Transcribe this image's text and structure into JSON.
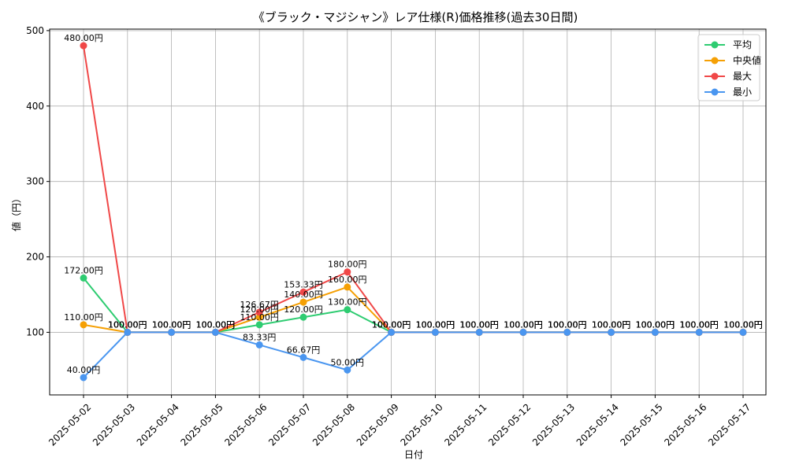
{
  "chart_data": {
    "type": "line",
    "title": "《ブラック・マジシャン》レア仕様(R)価格推移(過去30日間)",
    "xlabel": "日付",
    "ylabel": "値（円）",
    "ylim": [
      17,
      502
    ],
    "yticks": [
      100,
      200,
      300,
      400,
      500
    ],
    "grid": true,
    "legend_position": "top-right",
    "value_suffix": "円",
    "categories": [
      "2025-05-02",
      "2025-05-03",
      "2025-05-04",
      "2025-05-05",
      "2025-05-06",
      "2025-05-07",
      "2025-05-08",
      "2025-05-09",
      "2025-05-10",
      "2025-05-11",
      "2025-05-12",
      "2025-05-13",
      "2025-05-14",
      "2025-05-15",
      "2025-05-16",
      "2025-05-17"
    ],
    "series": [
      {
        "name": "平均",
        "color": "#2ecc71",
        "values": [
          172,
          100,
          100,
          100,
          110,
          120,
          130,
          100,
          100,
          100,
          100,
          100,
          100,
          100,
          100,
          100
        ]
      },
      {
        "name": "中央値",
        "color": "#f5a005",
        "values": [
          110,
          100,
          100,
          100,
          120,
          140,
          160,
          100,
          100,
          100,
          100,
          100,
          100,
          100,
          100,
          100
        ]
      },
      {
        "name": "最大",
        "color": "#f04848",
        "values": [
          480,
          100,
          100,
          100,
          126.67,
          153.33,
          180,
          100,
          100,
          100,
          100,
          100,
          100,
          100,
          100,
          100
        ]
      },
      {
        "name": "最小",
        "color": "#4a96f0",
        "values": [
          40,
          100,
          100,
          100,
          83.33,
          66.67,
          50,
          100,
          100,
          100,
          100,
          100,
          100,
          100,
          100,
          100
        ]
      }
    ]
  }
}
